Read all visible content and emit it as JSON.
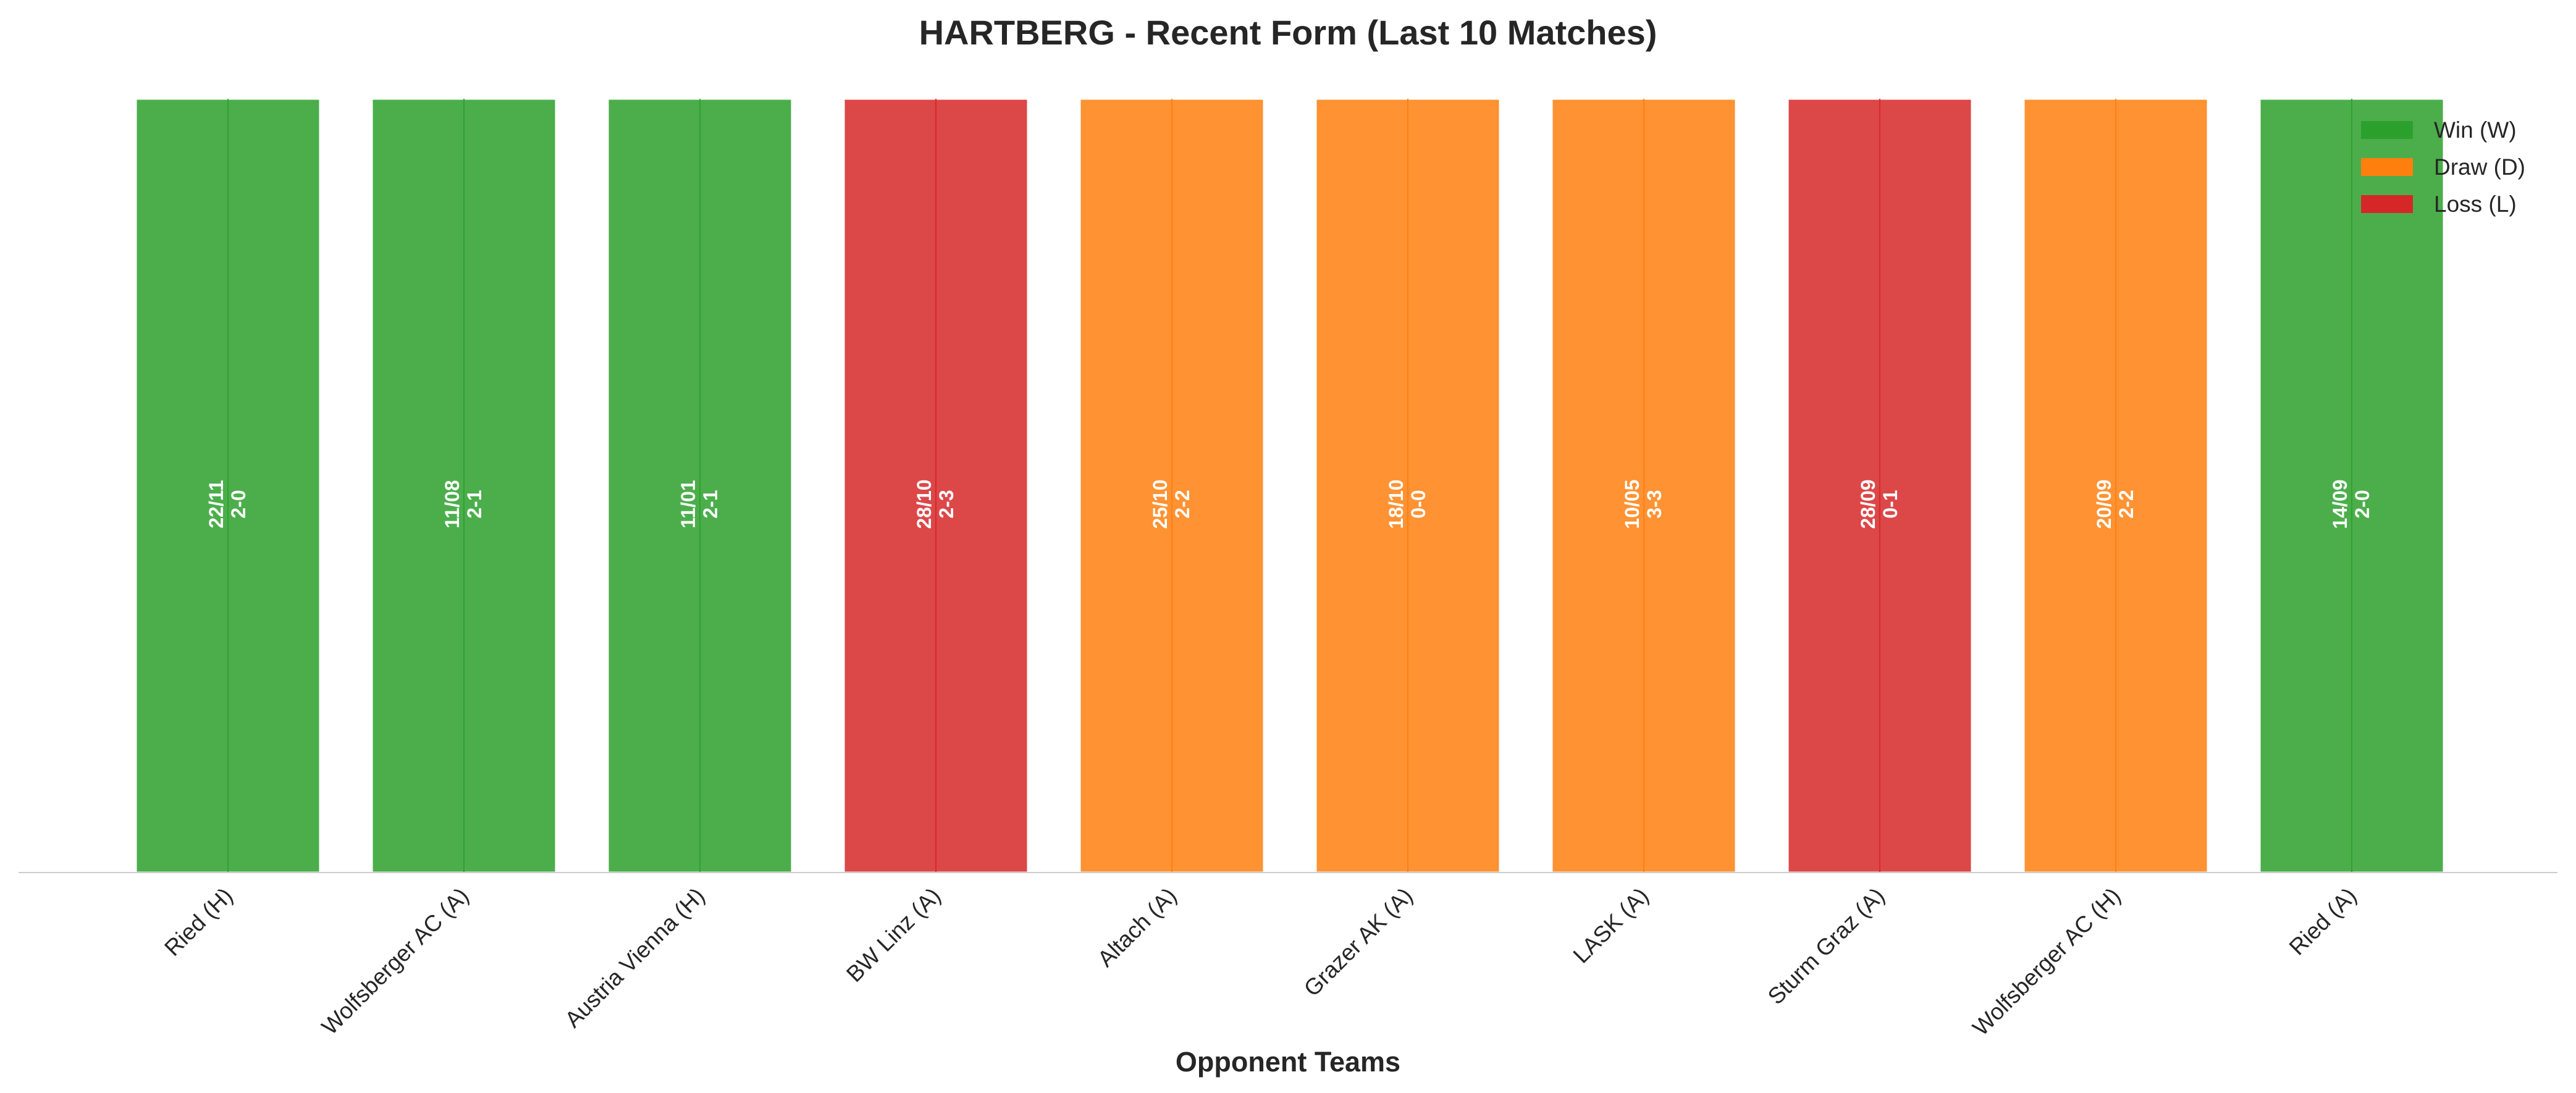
{
  "chart_data": {
    "type": "bar",
    "title": "HARTBERG - Recent Form (Last 10 Matches)",
    "xlabel": "Opponent Teams",
    "ylabel": "",
    "ylim": [
      0,
      1
    ],
    "grid": false,
    "legend_position": "top-right",
    "categories": [
      "Ried (H)",
      "Wolfsberger AC (A)",
      "Austria Vienna (H)",
      "BW Linz (A)",
      "Altach (A)",
      "Grazer AK (A)",
      "LASK (A)",
      "Sturm Graz (A)",
      "Wolfsberger AC (H)",
      "Ried (A)"
    ],
    "values": [
      1,
      1,
      1,
      1,
      1,
      1,
      1,
      1,
      1,
      1
    ],
    "results": [
      "W",
      "W",
      "W",
      "L",
      "D",
      "D",
      "D",
      "L",
      "D",
      "W"
    ],
    "dates": [
      "22/11",
      "11/08",
      "11/01",
      "28/10",
      "25/10",
      "18/10",
      "10/05",
      "28/09",
      "20/09",
      "14/09"
    ],
    "scores": [
      "2-0",
      "2-1",
      "2-1",
      "2-3",
      "2-2",
      "0-0",
      "3-3",
      "0-1",
      "2-2",
      "2-0"
    ],
    "legend": [
      {
        "key": "W",
        "label": "Win (W)",
        "color": "#2ca02c"
      },
      {
        "key": "D",
        "label": "Draw (D)",
        "color": "#ff7f0e"
      },
      {
        "key": "L",
        "label": "Loss (L)",
        "color": "#d62728"
      }
    ]
  }
}
